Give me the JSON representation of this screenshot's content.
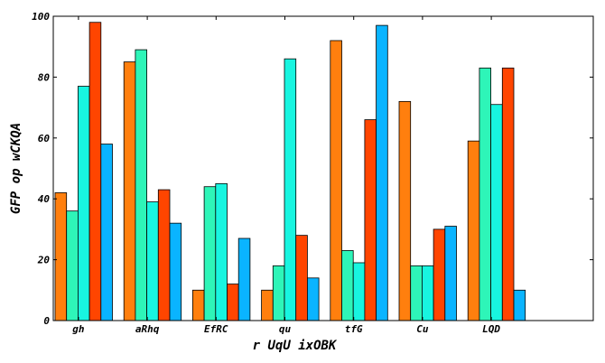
{
  "chart_data": {
    "type": "bar",
    "xlabel": "r UqU  ixOBK",
    "ylabel": "GFP op wCKQA",
    "ylim": [
      0,
      100
    ],
    "yticks": [
      0,
      20,
      40,
      60,
      80,
      100
    ],
    "grid": false,
    "categories": [
      "gh",
      "aRhq",
      "EfRC",
      "qu",
      "tfG",
      "Cu",
      "LQD"
    ],
    "series": [
      {
        "color": "#ff7f0e",
        "values": [
          42,
          85,
          10,
          10,
          92,
          72,
          59
        ]
      },
      {
        "color": "#2ef5b8",
        "values": [
          36,
          89,
          44,
          18,
          23,
          18,
          83
        ]
      },
      {
        "color": "#18f5e0",
        "values": [
          77,
          39,
          45,
          86,
          19,
          18,
          71
        ]
      },
      {
        "color": "#ff4500",
        "values": [
          98,
          43,
          12,
          28,
          66,
          30,
          83
        ]
      },
      {
        "color": "#0ab4ff",
        "values": [
          58,
          32,
          27,
          14,
          97,
          31,
          10
        ]
      }
    ]
  }
}
